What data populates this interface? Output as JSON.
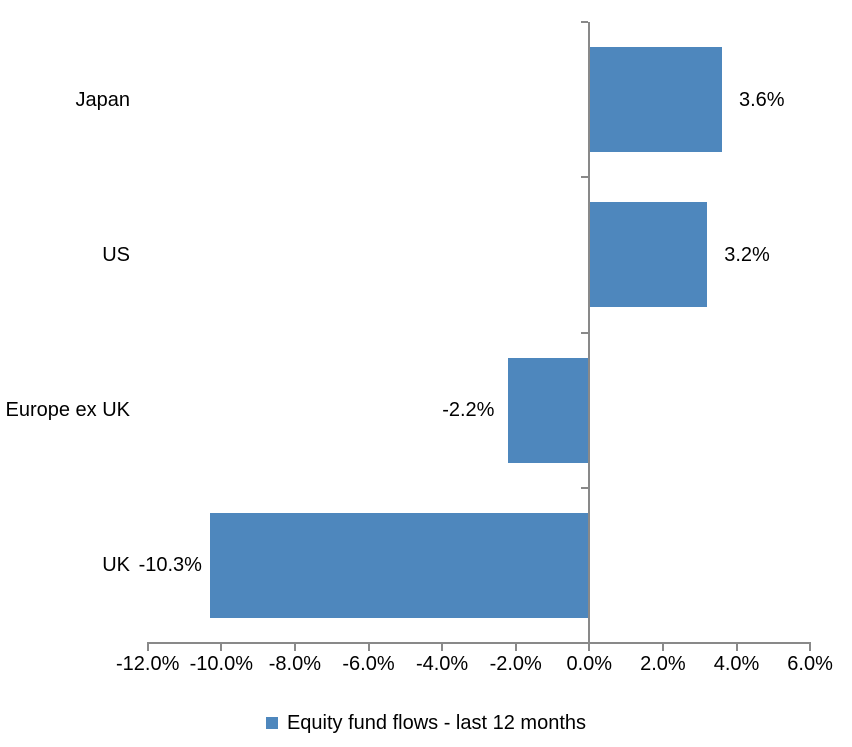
{
  "chart_data": {
    "type": "bar",
    "orientation": "horizontal",
    "title": "",
    "xlabel": "",
    "ylabel": "",
    "categories": [
      "Japan",
      "US",
      "Europe ex UK",
      "UK"
    ],
    "values": [
      3.6,
      3.2,
      -2.2,
      -10.3
    ],
    "data_labels": [
      "3.6%",
      "3.2%",
      "-2.2%",
      "-10.3%"
    ],
    "series": [
      {
        "name": "Equity fund flows - last 12 months",
        "values": [
          3.6,
          3.2,
          -2.2,
          -10.3
        ]
      }
    ],
    "xlim": [
      -12,
      6
    ],
    "x_tick_step": 2,
    "x_tick_labels": [
      "-12.0%",
      "-10.0%",
      "-8.0%",
      "-6.0%",
      "-4.0%",
      "-2.0%",
      "0.0%",
      "2.0%",
      "4.0%",
      "6.0%"
    ],
    "grid": false,
    "legend_position": "bottom",
    "colors": {
      "bar": "#4E87BD",
      "axis": "#898989",
      "text": "#000000",
      "background": "#FFFFFF"
    }
  },
  "legend": {
    "label": "Equity fund flows - last 12 months"
  }
}
